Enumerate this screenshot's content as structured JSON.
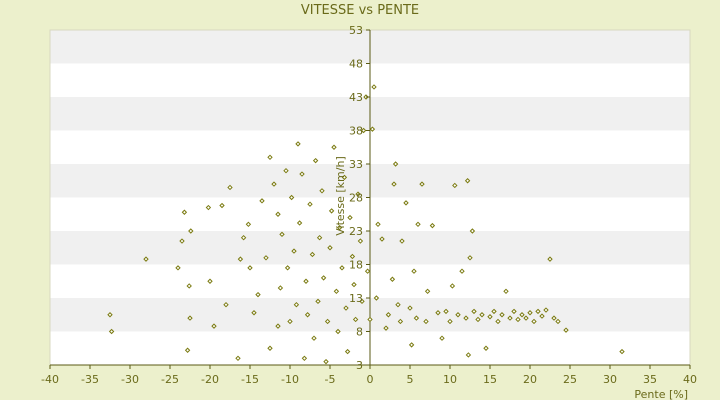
{
  "chart_data": {
    "type": "scatter",
    "title": "VITESSE vs PENTE",
    "xlabel": "Pente [%]",
    "ylabel": "Vitesse [km/h]",
    "xlim": [
      -40,
      40
    ],
    "ylim": [
      3,
      53
    ],
    "xticks": [
      -40,
      -35,
      -30,
      -25,
      -20,
      -15,
      -10,
      -5,
      0,
      5,
      10,
      15,
      20,
      25,
      30,
      35,
      40
    ],
    "yticks": [
      3,
      8,
      13,
      18,
      23,
      28,
      33,
      38,
      43,
      48,
      53
    ],
    "grid": "horizontal alternating bands",
    "legend": "none",
    "colors": {
      "background": "#ecf0cc",
      "band_light": "#ffffff",
      "band_dark": "#f0f0f0",
      "marker": "#7a7a10",
      "axis": "#5a5a14"
    },
    "series": [
      {
        "points": [
          [
            -32.5,
            10.5
          ],
          [
            -32.3,
            8
          ],
          [
            -28,
            18.8
          ],
          [
            -24,
            17.5
          ],
          [
            -23.5,
            21.5
          ],
          [
            -23.2,
            25.8
          ],
          [
            -22.6,
            14.8
          ],
          [
            -22.5,
            10
          ],
          [
            -22.8,
            5.2
          ],
          [
            -22.4,
            23
          ],
          [
            -20.2,
            26.5
          ],
          [
            -20,
            15.5
          ],
          [
            -19.5,
            8.8
          ],
          [
            -18.5,
            26.8
          ],
          [
            -18,
            12
          ],
          [
            -17.5,
            29.5
          ],
          [
            -16.5,
            4
          ],
          [
            -16.2,
            18.8
          ],
          [
            -15.8,
            22
          ],
          [
            -15.2,
            24
          ],
          [
            -15,
            17.5
          ],
          [
            -14.5,
            10.8
          ],
          [
            -14,
            13.5
          ],
          [
            -13.5,
            27.5
          ],
          [
            -13,
            19
          ],
          [
            -12.5,
            34
          ],
          [
            -12.5,
            5.5
          ],
          [
            -12,
            30
          ],
          [
            -11.5,
            25.5
          ],
          [
            -11.5,
            8.8
          ],
          [
            -11.2,
            14.5
          ],
          [
            -11,
            22.5
          ],
          [
            -10.5,
            32
          ],
          [
            -10.3,
            17.5
          ],
          [
            -10,
            9.5
          ],
          [
            -9.8,
            28
          ],
          [
            -9.5,
            20
          ],
          [
            -9.2,
            12
          ],
          [
            -9,
            36
          ],
          [
            -8.8,
            24.2
          ],
          [
            -8.5,
            31.5
          ],
          [
            -8.2,
            4
          ],
          [
            -8,
            15.5
          ],
          [
            -7.8,
            10.5
          ],
          [
            -7.5,
            27
          ],
          [
            -7.2,
            19.5
          ],
          [
            -7,
            7
          ],
          [
            -6.8,
            33.5
          ],
          [
            -6.5,
            12.5
          ],
          [
            -6.3,
            22
          ],
          [
            -6,
            29
          ],
          [
            -5.8,
            16
          ],
          [
            -5.5,
            3.5
          ],
          [
            -5.3,
            9.5
          ],
          [
            -5,
            20.5
          ],
          [
            -4.8,
            26
          ],
          [
            -4.5,
            35.5
          ],
          [
            -4.2,
            14
          ],
          [
            -4,
            8
          ],
          [
            -3.8,
            23.5
          ],
          [
            -3.5,
            17.5
          ],
          [
            -3.2,
            31
          ],
          [
            -3,
            11.5
          ],
          [
            -2.8,
            5
          ],
          [
            -2.5,
            25
          ],
          [
            -2.2,
            19.2
          ],
          [
            -2,
            15
          ],
          [
            -1.8,
            9.8
          ],
          [
            -1.5,
            28.5
          ],
          [
            -1.2,
            21.5
          ],
          [
            -1,
            12.5
          ],
          [
            -0.8,
            38
          ],
          [
            -0.5,
            43
          ],
          [
            -0.3,
            17
          ],
          [
            0,
            9.8
          ],
          [
            0.3,
            38.2
          ],
          [
            0.5,
            44.5
          ],
          [
            0.8,
            13
          ],
          [
            1,
            24
          ],
          [
            1.5,
            21.8
          ],
          [
            2,
            8.5
          ],
          [
            2.3,
            10.5
          ],
          [
            2.8,
            15.8
          ],
          [
            3,
            30
          ],
          [
            3.2,
            33
          ],
          [
            3.5,
            12
          ],
          [
            3.8,
            9.5
          ],
          [
            4,
            21.5
          ],
          [
            4.5,
            27.2
          ],
          [
            5,
            11.5
          ],
          [
            5.2,
            6
          ],
          [
            5.5,
            17
          ],
          [
            5.8,
            10
          ],
          [
            6,
            24
          ],
          [
            6.5,
            30
          ],
          [
            7,
            9.5
          ],
          [
            7.2,
            14
          ],
          [
            7.8,
            23.8
          ],
          [
            8.5,
            10.8
          ],
          [
            9,
            7
          ],
          [
            9.5,
            11
          ],
          [
            10,
            9.5
          ],
          [
            10.3,
            14.8
          ],
          [
            10.6,
            29.8
          ],
          [
            11,
            10.5
          ],
          [
            11.5,
            17
          ],
          [
            12,
            10
          ],
          [
            12.2,
            30.5
          ],
          [
            12.3,
            4.5
          ],
          [
            12.5,
            19
          ],
          [
            12.8,
            23
          ],
          [
            13,
            11
          ],
          [
            13.5,
            9.8
          ],
          [
            14,
            10.5
          ],
          [
            14.5,
            5.5
          ],
          [
            15,
            10.2
          ],
          [
            15.5,
            11
          ],
          [
            16,
            9.5
          ],
          [
            16.5,
            10.5
          ],
          [
            17,
            14
          ],
          [
            17.5,
            10
          ],
          [
            18,
            11
          ],
          [
            18.5,
            9.8
          ],
          [
            19,
            10.5
          ],
          [
            19.5,
            10
          ],
          [
            20,
            10.8
          ],
          [
            20.5,
            9.5
          ],
          [
            21,
            11
          ],
          [
            21.5,
            10.3
          ],
          [
            22,
            11.2
          ],
          [
            22.5,
            18.8
          ],
          [
            23,
            10
          ],
          [
            23.5,
            9.5
          ],
          [
            24.5,
            8.2
          ],
          [
            31.5,
            5
          ]
        ]
      }
    ]
  }
}
